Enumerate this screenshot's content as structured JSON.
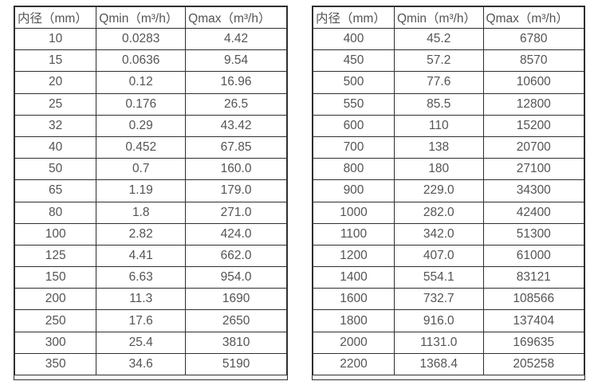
{
  "page": {
    "background_color": "#ffffff",
    "text_color": "#545454",
    "border_color": "#2f2f2f"
  },
  "tables": [
    {
      "name": "flow-rate-table-dn10-dn350",
      "headers": [
        "内径（mm）",
        "Qmin（m³/h）",
        "Qmax（m³/h）"
      ],
      "rows": [
        [
          "10",
          "0.0283",
          "4.42"
        ],
        [
          "15",
          "0.0636",
          "9.54"
        ],
        [
          "20",
          "0.12",
          "16.96"
        ],
        [
          "25",
          "0.176",
          "26.5"
        ],
        [
          "32",
          "0.29",
          "43.42"
        ],
        [
          "40",
          "0.452",
          "67.85"
        ],
        [
          "50",
          "0.7",
          "160.0"
        ],
        [
          "65",
          "1.19",
          "179.0"
        ],
        [
          "80",
          "1.8",
          "271.0"
        ],
        [
          "100",
          "2.82",
          "424.0"
        ],
        [
          "125",
          "4.41",
          "662.0"
        ],
        [
          "150",
          "6.63",
          "954.0"
        ],
        [
          "200",
          "11.3",
          "1690"
        ],
        [
          "250",
          "17.6",
          "2650"
        ],
        [
          "300",
          "25.4",
          "3810"
        ],
        [
          "350",
          "34.6",
          "5190"
        ]
      ]
    },
    {
      "name": "flow-rate-table-dn400-dn2200",
      "headers": [
        "内径（mm）",
        "Qmin（m³/h）",
        "Qmax（m³/h）"
      ],
      "rows": [
        [
          "400",
          "45.2",
          "6780"
        ],
        [
          "450",
          "57.2",
          "8570"
        ],
        [
          "500",
          "77.6",
          "10600"
        ],
        [
          "550",
          "85.5",
          "12800"
        ],
        [
          "600",
          "110",
          "15200"
        ],
        [
          "700",
          "138",
          "20700"
        ],
        [
          "800",
          "180",
          "27100"
        ],
        [
          "900",
          "229.0",
          "34300"
        ],
        [
          "1000",
          "282.0",
          "42400"
        ],
        [
          "1100",
          "342.0",
          "51300"
        ],
        [
          "1200",
          "407.0",
          "61000"
        ],
        [
          "1400",
          "554.1",
          "83121"
        ],
        [
          "1600",
          "732.7",
          "108566"
        ],
        [
          "1800",
          "916.0",
          "137404"
        ],
        [
          "2000",
          "1131.0",
          "169635"
        ],
        [
          "2200",
          "1368.4",
          "205258"
        ]
      ]
    }
  ]
}
